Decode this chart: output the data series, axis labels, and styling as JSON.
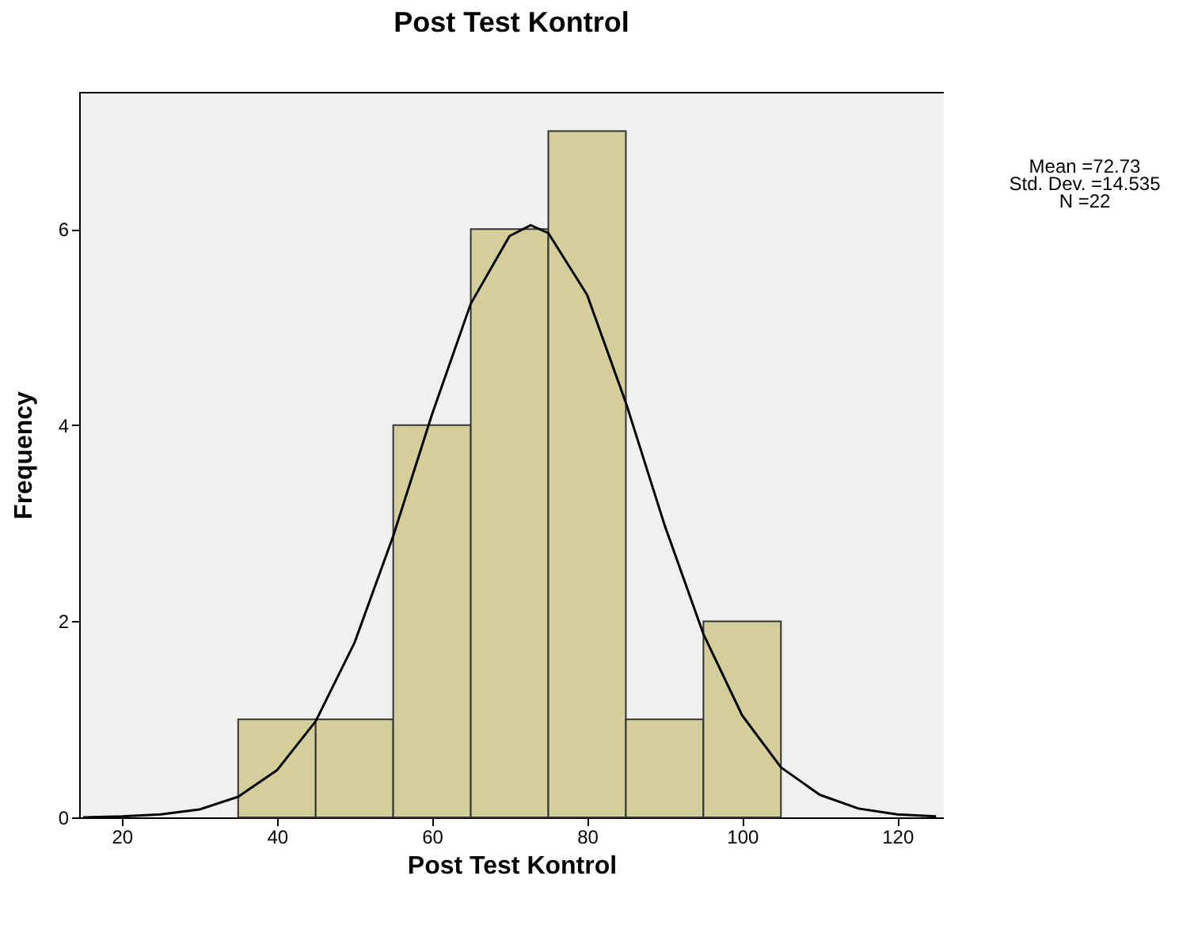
{
  "chart_data": {
    "type": "histogram",
    "title": "Post Test Kontrol",
    "xlabel": "Post Test Kontrol",
    "ylabel": "Frequency",
    "bins": [
      35,
      45,
      55,
      65,
      75,
      85,
      95,
      105
    ],
    "series": [
      {
        "color": "#d3ce9a",
        "values": [
          1,
          1,
          4,
          6,
          7,
          1,
          2
        ]
      },
      {
        "type": "line",
        "color": "#000000",
        "x": [
          15,
          20,
          25,
          30,
          35,
          40,
          45,
          50,
          55,
          60,
          65,
          70,
          72.73,
          75,
          80,
          85,
          90,
          95,
          100,
          105,
          110,
          115,
          120,
          125
        ],
        "values": [
          0,
          0.01,
          0.03,
          0.08,
          0.21,
          0.48,
          0.98,
          1.78,
          2.87,
          4.11,
          5.24,
          5.93,
          6.04,
          5.96,
          5.33,
          4.23,
          2.98,
          1.87,
          1.04,
          0.51,
          0.23,
          0.09,
          0.03,
          0.01
        ]
      }
    ],
    "xlim": [
      14.5,
      126
    ],
    "xticks": [
      20,
      40,
      60,
      80,
      100,
      120
    ],
    "ylim": [
      0,
      7.4
    ],
    "yticks": [
      0,
      2,
      4,
      6
    ],
    "grid": false,
    "annotations": [
      "Mean =72.73",
      "Std. Dev. =14.535",
      "N =22"
    ]
  }
}
